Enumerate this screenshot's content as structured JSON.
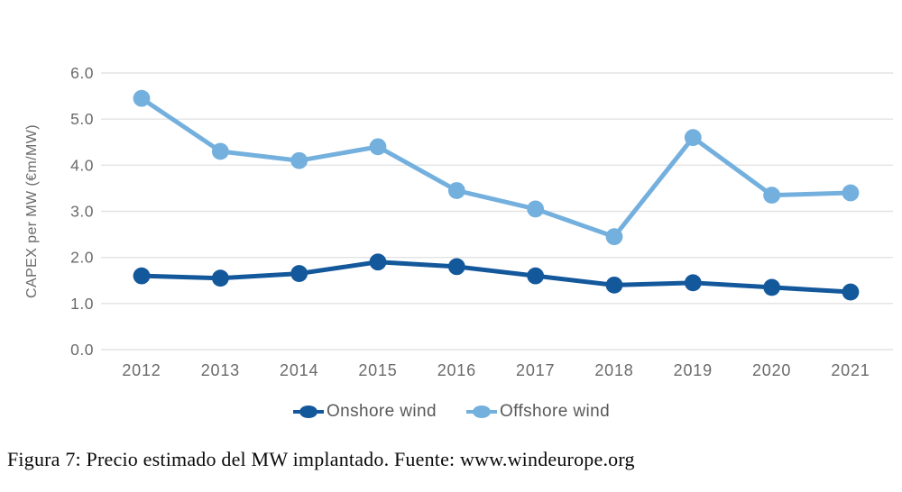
{
  "caption": "Figura 7: Precio estimado del MW implantado. Fuente: www.windeurope.org",
  "colors": {
    "onshore": "#14589c",
    "offshore": "#74b0de",
    "gridline": "#e3e3e3",
    "axis_text": "#6a6a6a",
    "legend_text": "#595959",
    "caption_text": "#0a0a0a",
    "background": "#ffffff"
  },
  "chart_data": {
    "type": "line",
    "title": "",
    "xlabel": "",
    "ylabel": "CAPEX per MW (€m/MW)",
    "ylim": [
      0,
      6
    ],
    "yticks": [
      0,
      1,
      2,
      3,
      4,
      5,
      6
    ],
    "ytick_decimals": 1,
    "grid": "horizontal",
    "legend_position": "bottom",
    "categories": [
      "2012",
      "2013",
      "2014",
      "2015",
      "2016",
      "2017",
      "2018",
      "2019",
      "2020",
      "2021"
    ],
    "series": [
      {
        "name": "Onshore wind",
        "color": "#14589c",
        "values": [
          1.6,
          1.55,
          1.65,
          1.9,
          1.8,
          1.6,
          1.4,
          1.45,
          1.35,
          1.25
        ]
      },
      {
        "name": "Offshore wind",
        "color": "#74b0de",
        "values": [
          5.45,
          4.3,
          4.1,
          4.4,
          3.45,
          3.05,
          2.45,
          4.6,
          3.35,
          3.4
        ]
      }
    ]
  }
}
